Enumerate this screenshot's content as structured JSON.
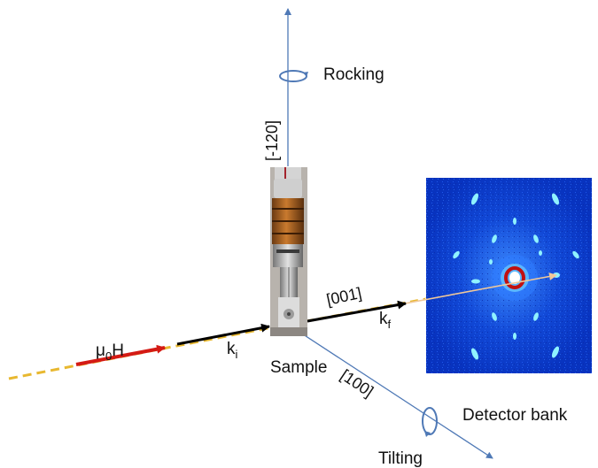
{
  "labels": {
    "rocking": "Rocking",
    "axis_vertical": "[-120]",
    "axis_beam": "[001]",
    "axis_diag": "[100]",
    "field_mu": "μ",
    "field_sub": "0",
    "field_H": "H",
    "k_in": "k",
    "k_in_sub": "i",
    "k_out": "k",
    "k_out_sub": "f",
    "sample": "Sample",
    "detector_bank": "Detector bank",
    "tilting": "Tilting"
  },
  "colors": {
    "axis": "#4f79b6",
    "beam_dashed": "#e8b830",
    "field_arrow": "#d41a14",
    "k_vector": "#000000",
    "scattered_beam": "#f0c89a",
    "detector_bg": "#0a37c8"
  },
  "icons": {
    "rotation_rocking": "rotation-arrow-icon",
    "rotation_tilting": "rotation-arrow-icon"
  }
}
